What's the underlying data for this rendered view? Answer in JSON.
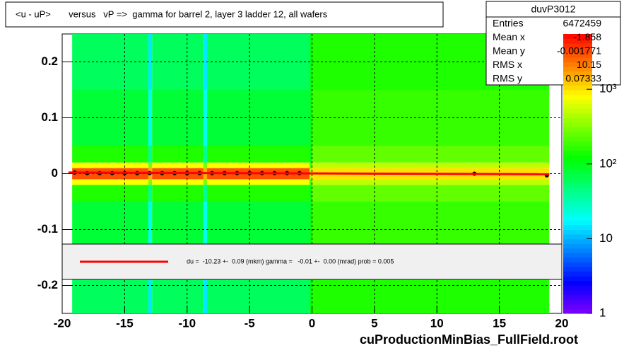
{
  "chart_data": {
    "type": "heatmap",
    "title": "<u - uP>       versus   vP =>  gamma for barrel 2, layer 3 ladder 12, all wafers",
    "footer": "cuProductionMinBias_FullField.root",
    "xlim": [
      -20,
      20
    ],
    "xticks": [
      -20,
      -15,
      -10,
      -5,
      0,
      5,
      10,
      15,
      20
    ],
    "ylim": [
      -0.25,
      0.25
    ],
    "yticks": [
      -0.2,
      -0.1,
      0,
      0.1,
      0.2
    ],
    "zlim": [
      1,
      5500
    ],
    "zlog": true,
    "zticks": [
      1,
      10,
      {
        "value": 100,
        "label": "10²"
      },
      {
        "value": 1000,
        "label": "10³"
      }
    ],
    "grid": true,
    "heatmap": {
      "xbins": [
        -19.2,
        -13.1,
        -12.8,
        -8.7,
        -8.4,
        -0.2,
        0,
        19
      ],
      "ybins": [
        -0.25,
        -0.15,
        -0.05,
        -0.02,
        -0.01,
        0.01,
        0.02,
        0.05,
        0.15,
        0.25
      ],
      "counts": [
        [
          60,
          15,
          60,
          15,
          60,
          100,
          150
        ],
        [
          80,
          20,
          80,
          20,
          80,
          100,
          180
        ],
        [
          150,
          40,
          150,
          40,
          150,
          100,
          250
        ],
        [
          800,
          300,
          800,
          300,
          800,
          200,
          500
        ],
        [
          3000,
          1500,
          3000,
          1500,
          3000,
          400,
          1000
        ],
        [
          800,
          300,
          800,
          300,
          800,
          200,
          500
        ],
        [
          150,
          40,
          150,
          40,
          150,
          100,
          250
        ],
        [
          80,
          20,
          80,
          20,
          80,
          100,
          180
        ],
        [
          60,
          15,
          60,
          15,
          60,
          100,
          150
        ]
      ]
    },
    "profile": {
      "x": [
        -19,
        -18,
        -17,
        -16,
        -15,
        -14,
        -13,
        -12,
        -11,
        -10,
        -9,
        -8,
        -7,
        -6,
        -5,
        -4,
        -3,
        -2,
        -1,
        13,
        18.8
      ],
      "values": [
        0.002,
        0.001,
        0.001,
        0.001,
        0.001,
        0.001,
        0.001,
        0.001,
        0.001,
        0.001,
        0.001,
        0.001,
        0.001,
        0.001,
        0.001,
        0.001,
        0.001,
        0.001,
        0.001,
        0,
        -0.003
      ]
    },
    "fit": {
      "color": "#ff0000",
      "x": [
        -19.5,
        19
      ],
      "values": [
        0.002,
        -0.001
      ],
      "label": "du =  -10.23 +-  0.09 (mkm) gamma =   -0.01 +-  0.00 (mrad) prob = 0.005"
    },
    "stats": {
      "name": "duvP3012",
      "rows": [
        [
          "Entries",
          "6472459"
        ],
        [
          "Mean x",
          "-1.858"
        ],
        [
          "Mean y",
          "-0.001771"
        ],
        [
          "RMS x",
          "10.15"
        ],
        [
          "RMS y",
          "0.07333"
        ]
      ]
    }
  }
}
